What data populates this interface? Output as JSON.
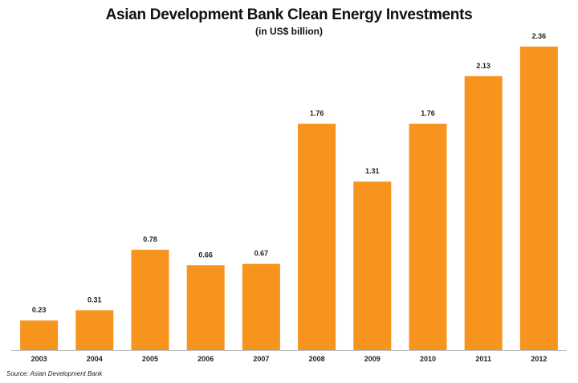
{
  "title": "Asian Development Bank Clean Energy Investments",
  "subtitle": "(in US$ billion)",
  "source": "Source: Asian Development Bank",
  "chart_data": {
    "type": "bar",
    "title": "Asian Development Bank Clean Energy Investments",
    "subtitle": "(in US$ billion)",
    "categories": [
      "2003",
      "2004",
      "2005",
      "2006",
      "2007",
      "2008",
      "2009",
      "2010",
      "2011",
      "2012"
    ],
    "values": [
      0.23,
      0.31,
      0.78,
      0.66,
      0.67,
      1.76,
      1.31,
      1.76,
      2.13,
      2.36
    ],
    "value_labels": [
      "0.23",
      "0.31",
      "0.78",
      "0.66",
      "0.67",
      "1.76",
      "1.31",
      "1.76",
      "2.13",
      "2.36"
    ],
    "xlabel": "",
    "ylabel": "",
    "ylim": [
      0,
      2.36
    ],
    "grid": false,
    "legend": "none",
    "bar_color": "#F7941D"
  }
}
